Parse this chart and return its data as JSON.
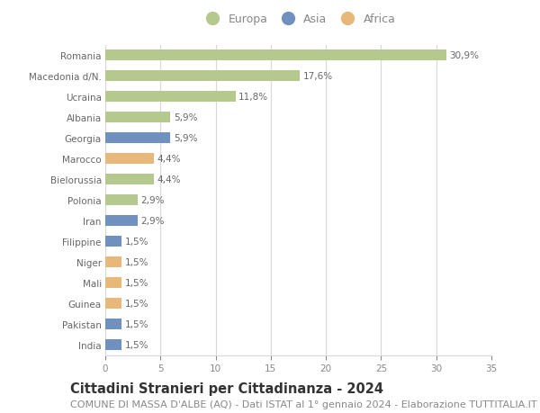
{
  "countries": [
    "Romania",
    "Macedonia d/N.",
    "Ucraina",
    "Albania",
    "Georgia",
    "Marocco",
    "Bielorussia",
    "Polonia",
    "Iran",
    "Filippine",
    "Niger",
    "Mali",
    "Guinea",
    "Pakistan",
    "India"
  ],
  "values": [
    30.9,
    17.6,
    11.8,
    5.9,
    5.9,
    4.4,
    4.4,
    2.9,
    2.9,
    1.5,
    1.5,
    1.5,
    1.5,
    1.5,
    1.5
  ],
  "labels": [
    "30,9%",
    "17,6%",
    "11,8%",
    "5,9%",
    "5,9%",
    "4,4%",
    "4,4%",
    "2,9%",
    "2,9%",
    "1,5%",
    "1,5%",
    "1,5%",
    "1,5%",
    "1,5%",
    "1,5%"
  ],
  "continents": [
    "Europa",
    "Europa",
    "Europa",
    "Europa",
    "Asia",
    "Africa",
    "Europa",
    "Europa",
    "Asia",
    "Asia",
    "Africa",
    "Africa",
    "Africa",
    "Asia",
    "Asia"
  ],
  "continent_colors": {
    "Europa": "#b5c98e",
    "Asia": "#7090c0",
    "Africa": "#e8b87a"
  },
  "legend_order": [
    "Europa",
    "Asia",
    "Africa"
  ],
  "title": "Cittadini Stranieri per Cittadinanza - 2024",
  "subtitle": "COMUNE DI MASSA D'ALBE (AQ) - Dati ISTAT al 1° gennaio 2024 - Elaborazione TUTTITALIA.IT",
  "xlim": [
    0,
    35
  ],
  "xticks": [
    0,
    5,
    10,
    15,
    20,
    25,
    30,
    35
  ],
  "bg_color": "#ffffff",
  "grid_color": "#d8d8d8",
  "bar_height": 0.55,
  "title_fontsize": 10.5,
  "subtitle_fontsize": 8,
  "label_fontsize": 7.5,
  "tick_fontsize": 7.5,
  "legend_fontsize": 9
}
